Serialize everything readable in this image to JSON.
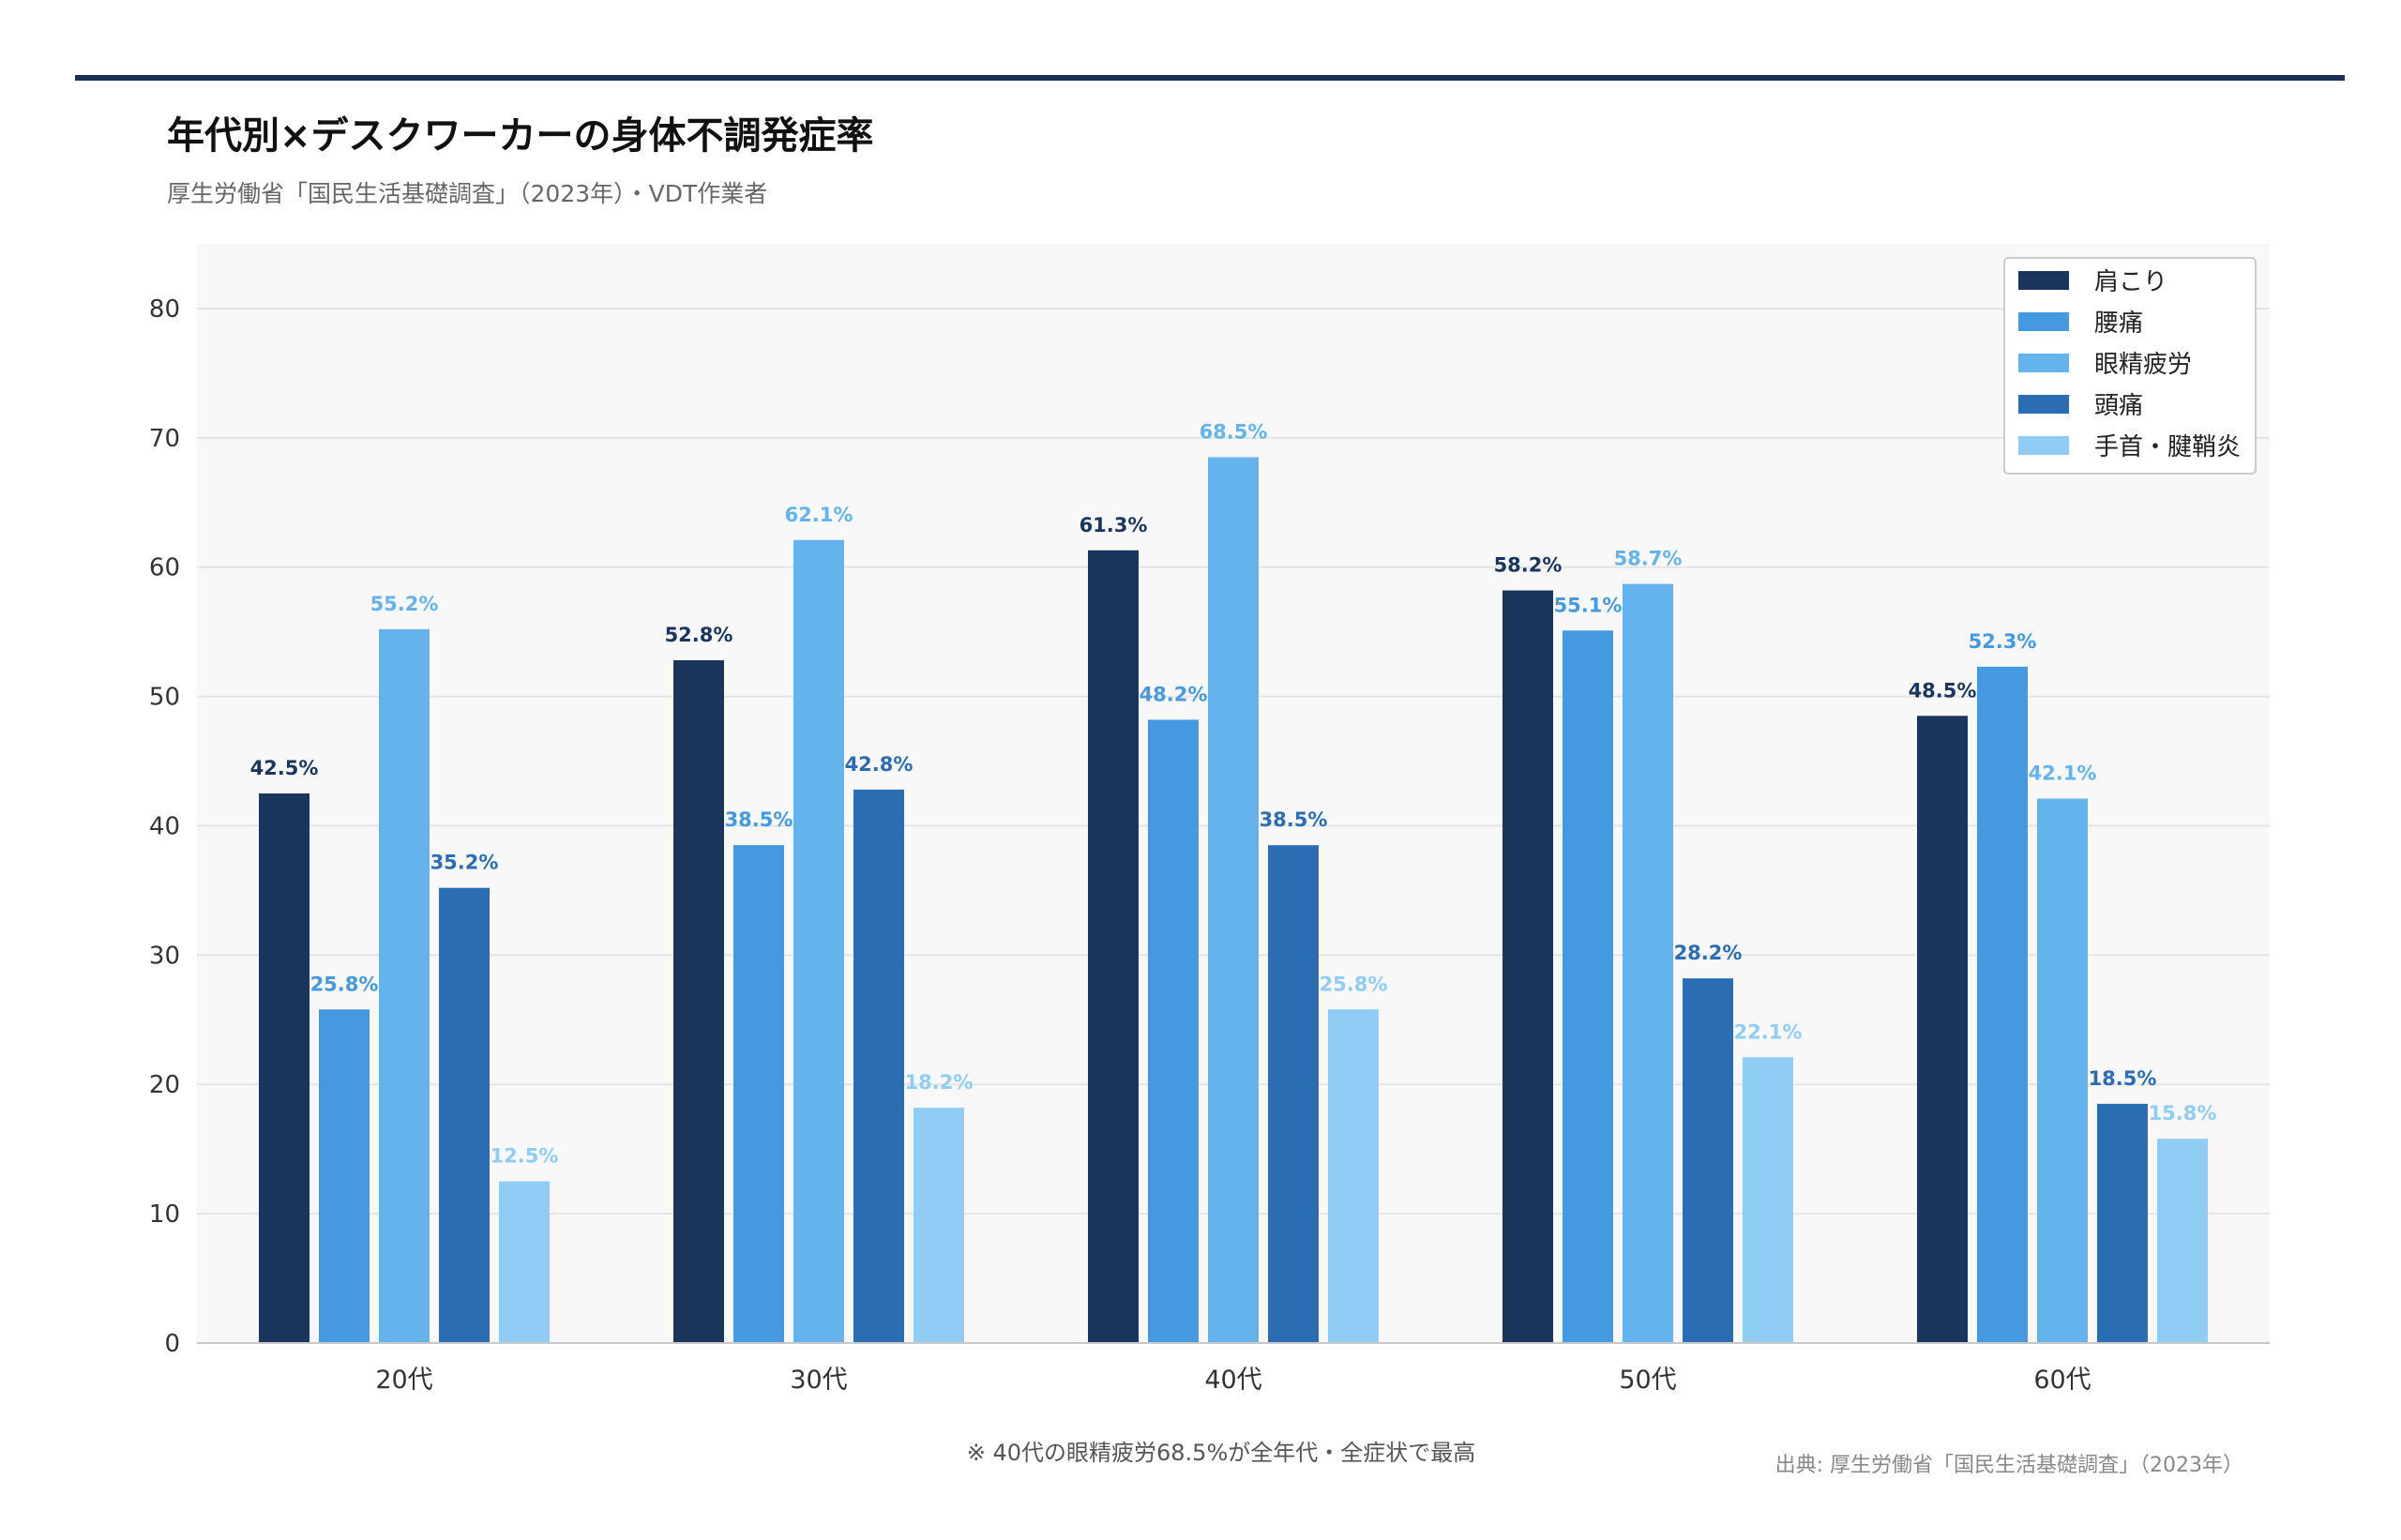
{
  "title": "年代別×デスクワーカーの身体不調発症率",
  "subtitle": "厚生労働省「国民生活基礎調査」（2023年）・VDT作業者",
  "footnote": "※ 40代の眼精疲労68.5%が全年代・全症状で最高",
  "source": "出典: 厚生労働省「国民生活基礎調査」（2023年）",
  "colors": {
    "header_bar": "#1a2f55",
    "plot_background": "#f8f8f8",
    "grid": "#e4e4e4",
    "axis": "#c8c8c8",
    "tick_text": "#333333",
    "title_text": "#111111",
    "subtitle_text": "#666666",
    "note_text": "#555555",
    "source_text": "#888888"
  },
  "chart_data": {
    "type": "bar",
    "title": "年代別×デスクワーカーの身体不調発症率",
    "subtitle": "厚生労働省「国民生活基礎調査」（2023年）・VDT作業者",
    "xlabel": "",
    "ylabel": "",
    "ylim": [
      0,
      85
    ],
    "yticks": [
      0,
      10,
      20,
      30,
      40,
      50,
      60,
      70,
      80
    ],
    "grid": true,
    "legend_position": "top-right",
    "categories": [
      "20代",
      "30代",
      "40代",
      "50代",
      "60代"
    ],
    "series": [
      {
        "name": "肩こり",
        "color": "#1b365d",
        "values": [
          42.5,
          52.8,
          61.3,
          58.2,
          48.5
        ],
        "labels": [
          "42.5%",
          "52.8%",
          "61.3%",
          "58.2%",
          "48.5%"
        ]
      },
      {
        "name": "腰痛",
        "color": "#4499e0",
        "values": [
          25.8,
          38.5,
          48.2,
          55.1,
          52.3
        ],
        "labels": [
          "25.8%",
          "38.5%",
          "48.2%",
          "55.1%",
          "52.3%"
        ]
      },
      {
        "name": "眼精疲労",
        "color": "#64b3ec",
        "values": [
          55.2,
          62.1,
          68.5,
          58.7,
          42.1
        ],
        "labels": [
          "55.2%",
          "62.1%",
          "68.5%",
          "58.7%",
          "42.1%"
        ]
      },
      {
        "name": "頭痛",
        "color": "#2b6db2",
        "values": [
          35.2,
          42.8,
          38.5,
          28.2,
          18.5
        ],
        "labels": [
          "35.2%",
          "42.8%",
          "38.5%",
          "28.2%",
          "18.5%"
        ]
      },
      {
        "name": "手首・腱鞘炎",
        "color": "#90cdf4",
        "values": [
          12.5,
          18.2,
          25.8,
          22.1,
          15.8
        ],
        "labels": [
          "12.5%",
          "18.2%",
          "25.8%",
          "22.1%",
          "15.8%"
        ]
      }
    ]
  }
}
